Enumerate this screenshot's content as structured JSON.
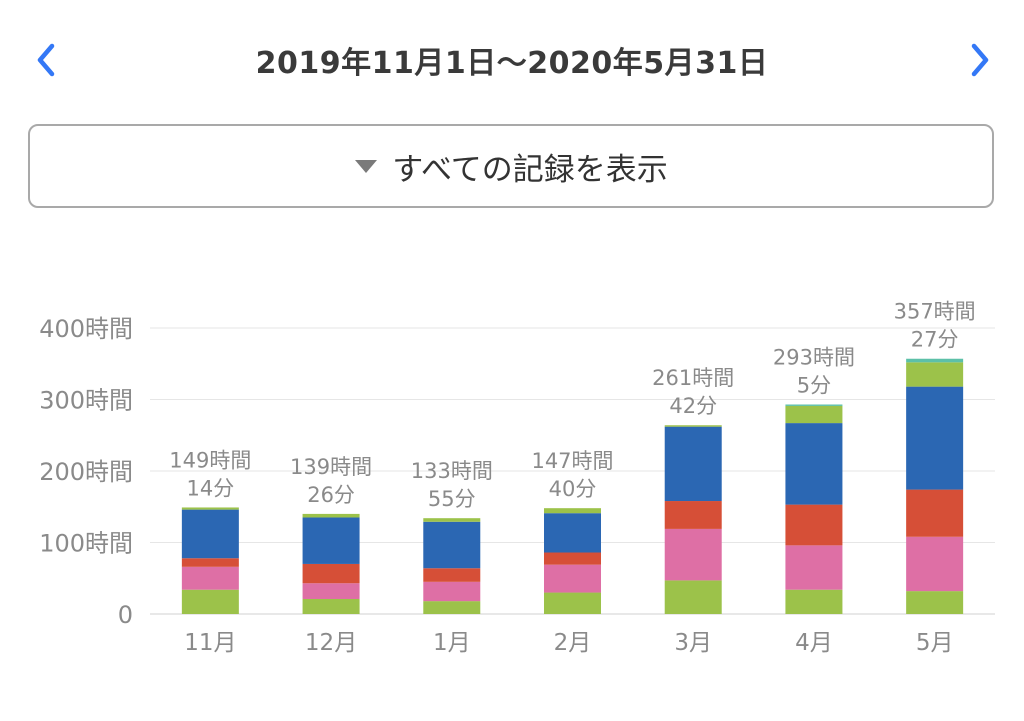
{
  "header": {
    "date_range": "2019年11月1日〜2020年5月31日",
    "prev_icon": "chevron-left-icon",
    "next_icon": "chevron-right-icon",
    "accent_color": "#3478f6"
  },
  "filter": {
    "label": "すべての記録を表示",
    "icon": "triangle-down-icon"
  },
  "chart_data": {
    "type": "bar",
    "stacked": true,
    "categories": [
      "11月",
      "12月",
      "1月",
      "2月",
      "3月",
      "4月",
      "5月"
    ],
    "ylim": [
      0,
      400
    ],
    "yticks": [
      {
        "value": 0,
        "label": "0"
      },
      {
        "value": 100,
        "label": "100時間"
      },
      {
        "value": 200,
        "label": "200時間"
      },
      {
        "value": 300,
        "label": "300時間"
      },
      {
        "value": 400,
        "label": "400時間"
      }
    ],
    "totals": [
      {
        "hours": "149時間",
        "minutes": "14分"
      },
      {
        "hours": "139時間",
        "minutes": "26分"
      },
      {
        "hours": "133時間",
        "minutes": "55分"
      },
      {
        "hours": "147時間",
        "minutes": "40分"
      },
      {
        "hours": "261時間",
        "minutes": "42分"
      },
      {
        "hours": "293時間",
        "minutes": "5分"
      },
      {
        "hours": "357時間",
        "minutes": "27分"
      }
    ],
    "series": [
      {
        "color": "#9cc24a",
        "values": [
          34,
          21,
          18,
          30,
          47,
          34,
          32
        ]
      },
      {
        "color": "#de6fa5",
        "values": [
          32,
          22,
          27,
          39,
          72,
          62,
          76
        ]
      },
      {
        "color": "#d64f37",
        "values": [
          12,
          27,
          19,
          17,
          39,
          57,
          66
        ]
      },
      {
        "color": "#2b67b3",
        "values": [
          68,
          65,
          65,
          55,
          104,
          114,
          144
        ]
      },
      {
        "color": "#9cc24a",
        "values": [
          3,
          5,
          5,
          7,
          2,
          24,
          34
        ]
      },
      {
        "color": "#5cc0a8",
        "values": [
          0,
          0,
          0,
          0,
          0,
          2,
          5
        ]
      }
    ],
    "grid": true,
    "legend": "none"
  }
}
